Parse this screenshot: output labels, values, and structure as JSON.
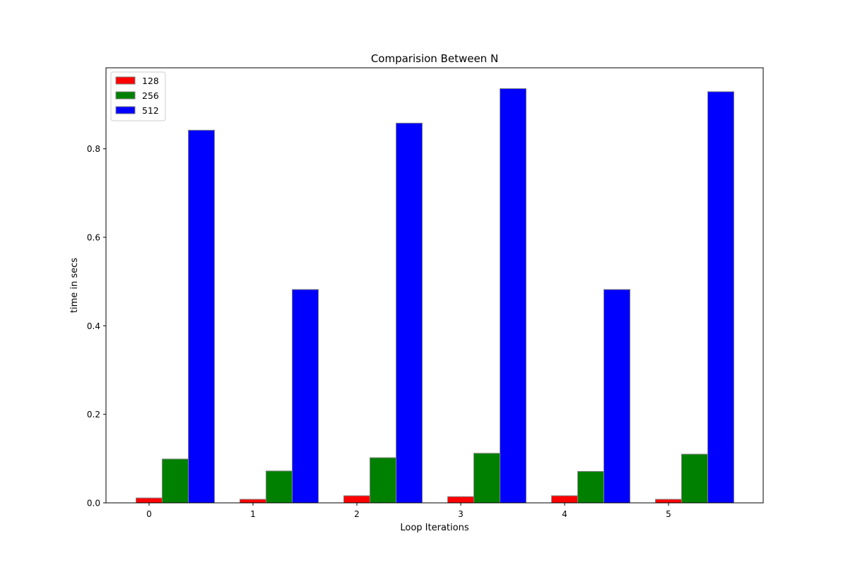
{
  "chart_data": {
    "type": "bar",
    "title": "Comparision Between N",
    "xlabel": "Loop Iterations",
    "ylabel": "time in secs",
    "categories": [
      "0",
      "1",
      "2",
      "3",
      "4",
      "5"
    ],
    "series": [
      {
        "name": "128",
        "color": "#ff0000",
        "values": [
          0.011,
          0.008,
          0.016,
          0.014,
          0.016,
          0.008
        ]
      },
      {
        "name": "256",
        "color": "#008000",
        "values": [
          0.099,
          0.072,
          0.102,
          0.112,
          0.071,
          0.11
        ]
      },
      {
        "name": "512",
        "color": "#0000ff",
        "values": [
          0.842,
          0.482,
          0.858,
          0.936,
          0.482,
          0.929
        ]
      }
    ],
    "ylim": [
      0,
      0.983
    ],
    "yticks": [
      "0.0",
      "0.2",
      "0.4",
      "0.6",
      "0.8"
    ],
    "ytick_values": [
      0,
      0.2,
      0.4,
      0.6,
      0.8
    ],
    "grid": false,
    "legend_position": "top-left",
    "bar_edge_color": "#808080"
  }
}
